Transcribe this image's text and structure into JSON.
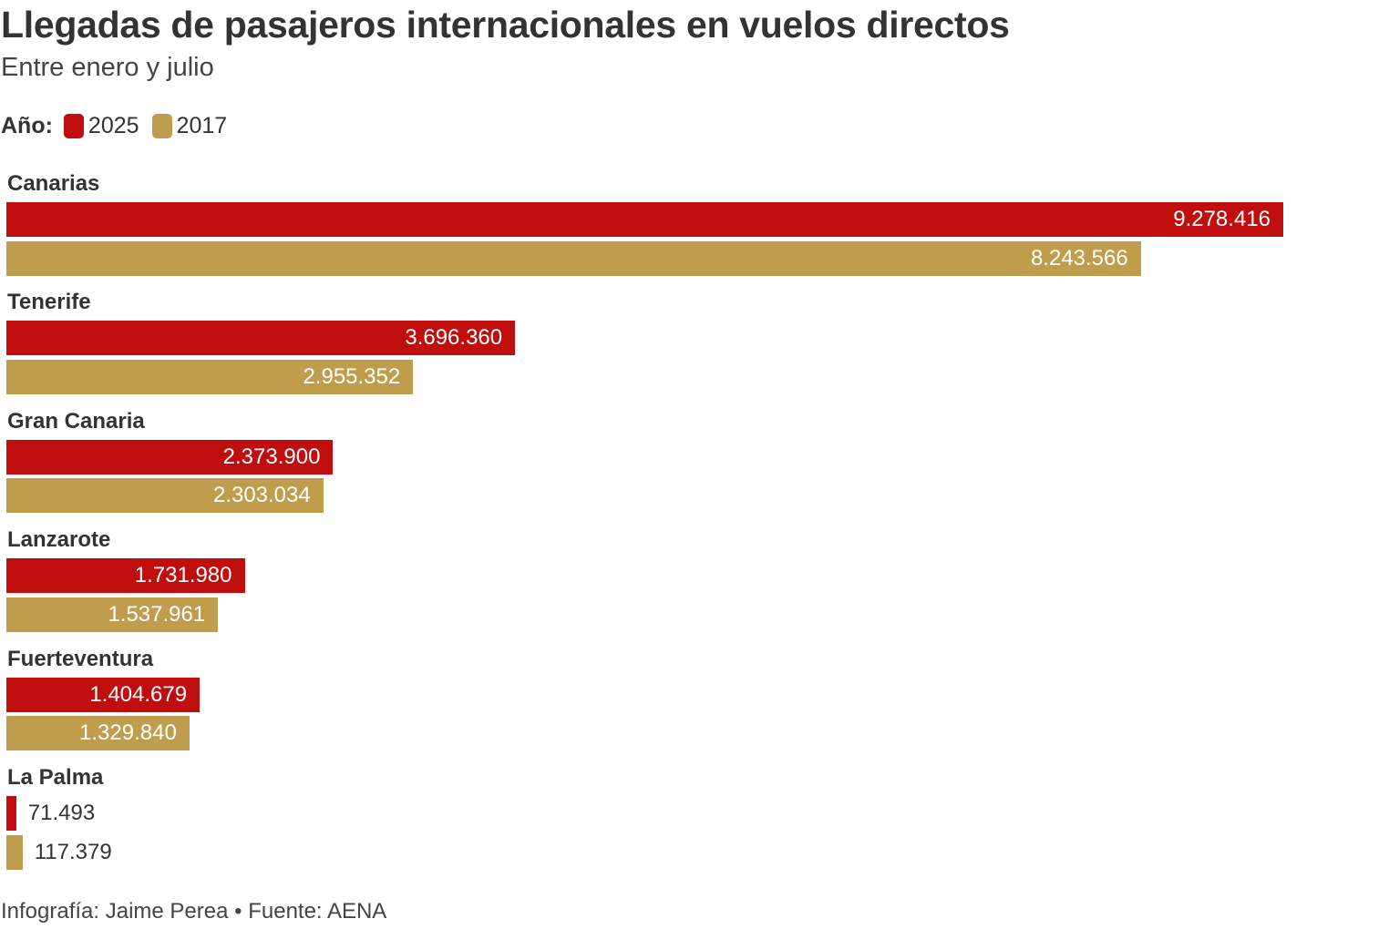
{
  "title": "Llegadas de pasajeros internacionales en vuelos directos",
  "subtitle": "Entre enero y julio",
  "footer": "Infografía: Jaime Perea • Fuente: AENA",
  "chart_data": {
    "type": "bar",
    "orientation": "horizontal",
    "title": "Llegadas de pasajeros internacionales en vuelos directos",
    "subtitle": "Entre enero y julio",
    "legend_title": "Año:",
    "legend_placement": "top-left",
    "grid": false,
    "categories": [
      "Canarias",
      "Tenerife",
      "Gran Canaria",
      "Lanzarote",
      "Fuerteventura",
      "La Palma"
    ],
    "series": [
      {
        "name": "2025",
        "color": "#c00d0e",
        "values": [
          9278416,
          3696360,
          2373900,
          1731980,
          1404679,
          71493
        ],
        "labels": [
          "9.278.416",
          "3.696.360",
          "2.373.900",
          "1.731.980",
          "1.404.679",
          "71.493"
        ]
      },
      {
        "name": "2017",
        "color": "#c09d4c",
        "values": [
          8243566,
          2955352,
          2303034,
          1537961,
          1329840,
          117379
        ],
        "labels": [
          "8.243.566",
          "2.955.352",
          "2.303.034",
          "1.537.961",
          "1.329.840",
          "117.379"
        ]
      }
    ]
  }
}
